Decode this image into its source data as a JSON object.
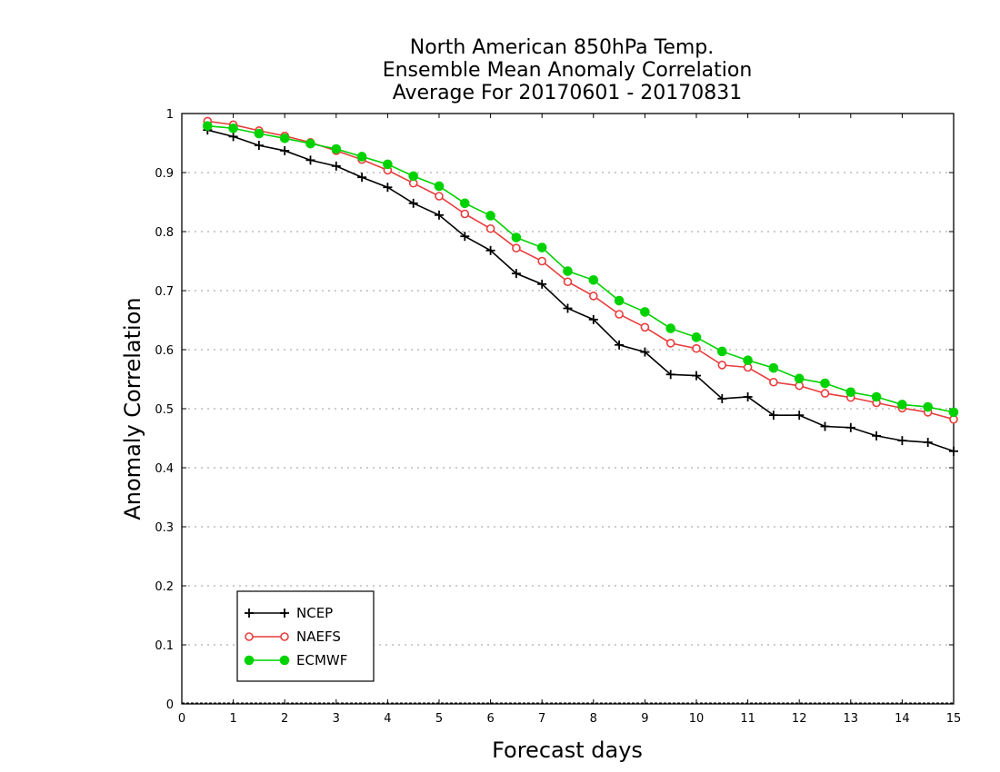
{
  "chart_data": {
    "type": "line",
    "title_lines": [
      "North American 850hPa Temp.",
      "Ensemble Mean Anomaly Correlation",
      "Average For 20170601 - 20170831"
    ],
    "xlabel": "Forecast days",
    "ylabel": "Anomaly Correlation",
    "xlim": [
      0,
      15
    ],
    "ylim": [
      0,
      1
    ],
    "xticks": [
      "0",
      "1",
      "2",
      "3",
      "4",
      "5",
      "6",
      "7",
      "8",
      "9",
      "10",
      "11",
      "12",
      "13",
      "14",
      "15"
    ],
    "yticks": [
      "0",
      "0.1",
      "0.2",
      "0.3",
      "0.4",
      "0.5",
      "0.6",
      "0.7",
      "0.8",
      "0.9",
      "1"
    ],
    "grid": "horizontal dotted",
    "legend_position": "bottom-left",
    "x": [
      0.5,
      1,
      1.5,
      2,
      2.5,
      3,
      3.5,
      4,
      4.5,
      5,
      5.5,
      6,
      6.5,
      7,
      7.5,
      8,
      8.5,
      9,
      9.5,
      10,
      10.5,
      11,
      11.5,
      12,
      12.5,
      13,
      13.5,
      14,
      14.5,
      15
    ],
    "series": [
      {
        "name": "NCEP",
        "color": "#000000",
        "marker": "plus",
        "values": [
          0.972,
          0.961,
          0.946,
          0.937,
          0.921,
          0.911,
          0.892,
          0.875,
          0.848,
          0.828,
          0.792,
          0.768,
          0.729,
          0.711,
          0.67,
          0.651,
          0.608,
          0.596,
          0.558,
          0.556,
          0.517,
          0.52,
          0.489,
          0.489,
          0.47,
          0.468,
          0.454,
          0.446,
          0.443,
          0.428
        ]
      },
      {
        "name": "NAEFS",
        "color": "#e83c3c",
        "marker": "open-circle",
        "values": [
          0.987,
          0.981,
          0.971,
          0.962,
          0.951,
          0.937,
          0.922,
          0.904,
          0.882,
          0.86,
          0.83,
          0.805,
          0.772,
          0.75,
          0.715,
          0.691,
          0.66,
          0.638,
          0.611,
          0.602,
          0.574,
          0.57,
          0.545,
          0.539,
          0.526,
          0.519,
          0.51,
          0.501,
          0.494,
          0.482
        ]
      },
      {
        "name": "ECMWF",
        "color": "#00d200",
        "marker": "filled-circle",
        "values": [
          0.979,
          0.975,
          0.966,
          0.958,
          0.949,
          0.94,
          0.927,
          0.914,
          0.894,
          0.877,
          0.848,
          0.827,
          0.79,
          0.773,
          0.733,
          0.718,
          0.683,
          0.664,
          0.636,
          0.621,
          0.597,
          0.582,
          0.569,
          0.551,
          0.543,
          0.528,
          0.52,
          0.507,
          0.503,
          0.494
        ]
      }
    ]
  }
}
